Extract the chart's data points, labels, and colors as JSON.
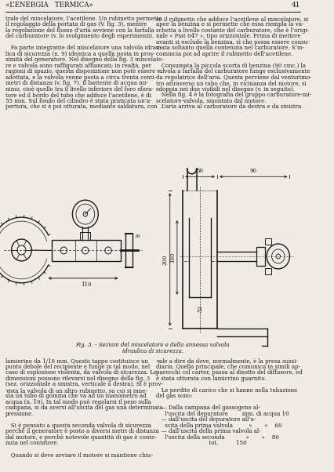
{
  "page_title": "«L’ENERGIA   TERMICA»",
  "page_number": "41",
  "background_color": "#f0ece4",
  "text_color": "#1a1a1a",
  "col1_lines": [
    "trale del miscelatore, l’acetilene. Un rubinetto permette",
    "il regolaggio della portata di gas (V. fig. 3), mentre",
    "la regolazione del flusso d’aria avviene con la farfalla",
    "del carburatore (v. lo svolgimento degli esperimenti).",
    "",
    "   Fa parte integrante del miscelatore una valvola idrau-",
    "lica di sicurezza (n. 9) identica a quella posta in pros-",
    "simità del generatore. Nel disegno della fig. 3 miscelato-",
    "re e valvola sono raffigurati affiancati; in realtà, per",
    "ragioni di spazio, questa disposizione non potè essere",
    "adottata, e la valvola venne posta a circa trenta centi-",
    "metri di distanza (v. fig. 7). Il battente di acqua mi-",
    "nimo, cioè quello tra il livello inferiore del foro sfora-",
    "tore ed il bordo del tubo che adduce l’acetilene, è di",
    "55 mm. Sul fondo del cilindro è stata praticata un’a-",
    "pertura, che si è poi otturata, mediante saldatura, con"
  ],
  "col2_lines": [
    "so il rubinetto che adduce l’acetilene al miscelatore, si",
    "apee la benzina e si permette che essa riempla la va-",
    "schetta a livello costante del carburatore, che è l’origi-",
    "nale « Fiat 047 », tipo orizzontale. Prima di mettere",
    "avanti si esclude la benzina, sì che possa essere consu-",
    "mata soltanto quella contenuta nel carburatore. S’in-",
    "comincia poi ad aprire il rubinetto dell’acetilene.",
    "",
    "   Consumata la piccola scorta di benzina (90 cmc.) la",
    "valvola a farfalla del carburatore funge esclusivamente",
    "da regolatrice dell’aria. Questa perviene dal venturimo-",
    "tro attraverso un tubo che, in vicinanza del motore, si",
    "sdoppia nei due visibili nel disegno (v. in seguito).",
    "   Nella fig. 4 è la fotografia del gruppo carburatore-mi-",
    "scelatore-valvola, smontato dal motore.",
    "   L’aria arriva al carburatore da destra e da sinistra."
  ],
  "caption_lines": [
    "Fig. 3. - Sezioni del miscelatore e della annessa valvola",
    "idraulica di sicurezza."
  ],
  "bot_col1_lines": [
    "lamierino da 1/10 mm. Questo tappo costituisce un",
    "punto debole del recipiente e funge in tal modo, nel",
    "caso di esplosione violenta, da valvola di sicurezza. Le",
    "dimensioni possono rilevarsi nel disegno della fig. 3",
    "(sez. orizzontale a sinistra, verticale a destra). Si è prov-",
    "vista la valvola di un altro rubinetto, su cui si inne-",
    "sta un tubo di gomma che va ad un manometro ad",
    "acqua (n. 10). In tal modo può regolarsi il peso sulla",
    "campana, si da aversi all’uscita del gas una determinata",
    "pressione.",
    "",
    "   Si è pensato a questa seconda valvola di sicurezza",
    "perchè il generatore è posto a diversi metri di distanza",
    "dal motore, e perchè notevole quantità di gas è conte-",
    "nuta nel contatore.",
    "",
    "   Quando si deve avviare il motore si mantiene chiu-"
  ],
  "bot_col2_lines": [
    "vale a dire da dove, normalmente, è la presa sussi-",
    "diaria. Quella principale, che comunica in simili ap-",
    "parecchi col carter, passa al disotto del diffusore, ed",
    "è stata otturata con lamicrino guarnito.",
    "",
    "   Le perdite di carico che si hanno nella tubazione",
    "del gas sono:",
    "",
    "   — Dalla campana del gassogeno al-",
    "     l’uscita del depuratore        mm. di acqua 10",
    "   — dall’uscita del depuratore all’u-",
    "     scita della prima valvola         »       »    60",
    "   — dall’uscita della prima valvola al-",
    "     l’uscita della seconda            »       »    80",
    "                              tot.          150"
  ]
}
